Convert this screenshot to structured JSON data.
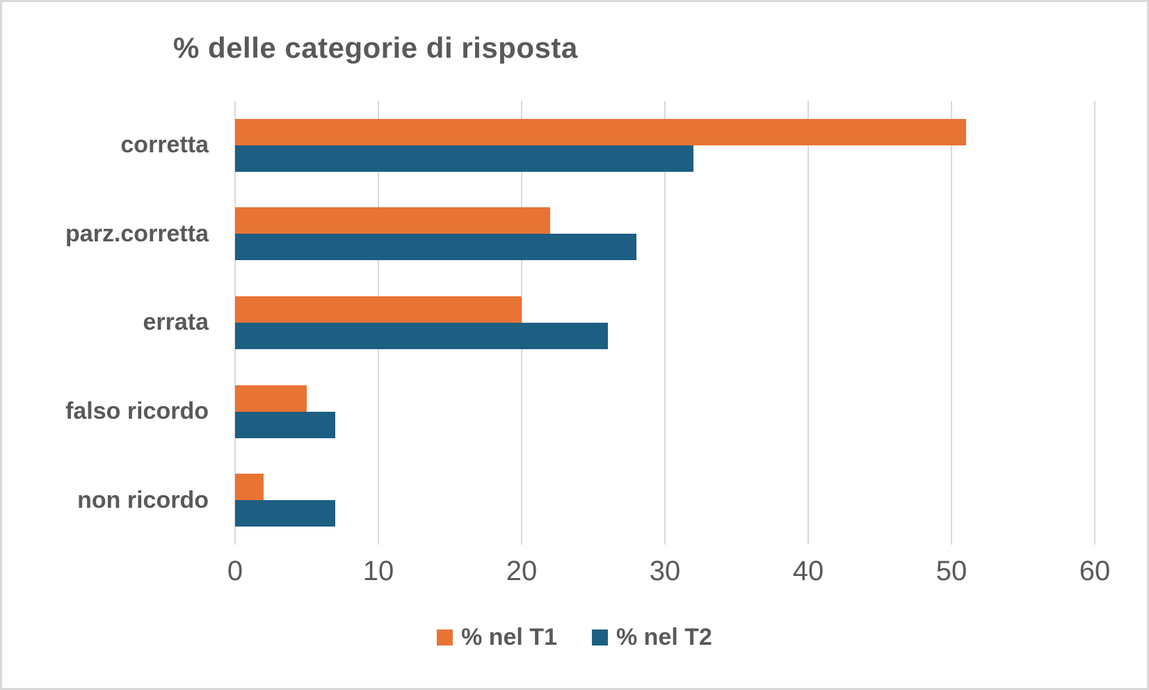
{
  "colors": {
    "series_t1": "#e87434",
    "series_t2": "#1d5e83",
    "text": "#595959",
    "gridline": "#d9d9d9",
    "frame_border": "#d9d9d9",
    "background": "#ffffff"
  },
  "chart_data": {
    "type": "bar",
    "orientation": "horizontal",
    "title": "% delle categorie di risposta",
    "categories": [
      "corretta",
      "parz.corretta",
      "errata",
      "falso ricordo",
      "non ricordo"
    ],
    "series": [
      {
        "name": "% nel T1",
        "color": "#e87434",
        "values": [
          51,
          22,
          20,
          5,
          2
        ]
      },
      {
        "name": "% nel T2",
        "color": "#1d5e83",
        "values": [
          32,
          28,
          26,
          7,
          7
        ]
      }
    ],
    "xlabel": "",
    "ylabel": "",
    "xlim": [
      0,
      60
    ],
    "xticks": [
      0,
      10,
      20,
      30,
      40,
      50,
      60
    ],
    "grid": "vertical",
    "legend_position": "bottom"
  }
}
